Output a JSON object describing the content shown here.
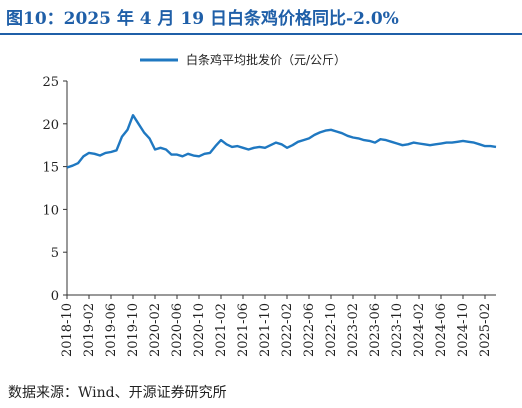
{
  "title": "图10：2025 年 4 月 19 日白条鸡价格同比-2.0%",
  "source": "数据来源：Wind、开源证券研究所",
  "colors": {
    "title": "#1f5fa8",
    "series": "#1f78c1",
    "axis": "#333333"
  },
  "chart_data": {
    "type": "line",
    "title": "",
    "xlabel": "",
    "ylabel": "",
    "legend_position": "top-center",
    "grid": false,
    "ylim": [
      0,
      25
    ],
    "yticks": [
      0,
      5,
      10,
      15,
      20,
      25
    ],
    "xlim": [
      "2018-10",
      "2025-04"
    ],
    "xticks": [
      "2018-10",
      "2019-02",
      "2019-06",
      "2019-10",
      "2020-02",
      "2020-06",
      "2020-10",
      "2021-02",
      "2021-06",
      "2021-10",
      "2022-02",
      "2022-06",
      "2022-10",
      "2023-02",
      "2023-06",
      "2023-10",
      "2024-02",
      "2024-06",
      "2024-10",
      "2025-02"
    ],
    "series": [
      {
        "name": "白条鸡平均批发价（元/公斤）",
        "x": [
          "2018-10",
          "2018-11",
          "2018-12",
          "2019-01",
          "2019-02",
          "2019-03",
          "2019-04",
          "2019-05",
          "2019-06",
          "2019-07",
          "2019-08",
          "2019-09",
          "2019-10",
          "2019-11",
          "2019-12",
          "2020-01",
          "2020-02",
          "2020-03",
          "2020-04",
          "2020-05",
          "2020-06",
          "2020-07",
          "2020-08",
          "2020-09",
          "2020-10",
          "2020-11",
          "2020-12",
          "2021-01",
          "2021-02",
          "2021-03",
          "2021-04",
          "2021-05",
          "2021-06",
          "2021-07",
          "2021-08",
          "2021-09",
          "2021-10",
          "2021-11",
          "2021-12",
          "2022-01",
          "2022-02",
          "2022-03",
          "2022-04",
          "2022-05",
          "2022-06",
          "2022-07",
          "2022-08",
          "2022-09",
          "2022-10",
          "2022-11",
          "2022-12",
          "2023-01",
          "2023-02",
          "2023-03",
          "2023-04",
          "2023-05",
          "2023-06",
          "2023-07",
          "2023-08",
          "2023-09",
          "2023-10",
          "2023-11",
          "2023-12",
          "2024-01",
          "2024-02",
          "2024-03",
          "2024-04",
          "2024-05",
          "2024-06",
          "2024-07",
          "2024-08",
          "2024-09",
          "2024-10",
          "2024-11",
          "2024-12",
          "2025-01",
          "2025-02",
          "2025-03",
          "2025-04"
        ],
        "values": [
          14.9,
          15.1,
          15.4,
          16.2,
          16.6,
          16.5,
          16.3,
          16.6,
          16.7,
          16.9,
          18.5,
          19.3,
          21.0,
          20.0,
          19.0,
          18.3,
          17.0,
          17.2,
          17.0,
          16.4,
          16.4,
          16.2,
          16.5,
          16.3,
          16.2,
          16.5,
          16.6,
          17.4,
          18.1,
          17.6,
          17.3,
          17.4,
          17.2,
          17.0,
          17.2,
          17.3,
          17.2,
          17.5,
          17.8,
          17.6,
          17.2,
          17.5,
          17.9,
          18.1,
          18.3,
          18.7,
          19.0,
          19.2,
          19.3,
          19.1,
          18.9,
          18.6,
          18.4,
          18.3,
          18.1,
          18.0,
          17.8,
          18.2,
          18.1,
          17.9,
          17.7,
          17.5,
          17.6,
          17.8,
          17.7,
          17.6,
          17.5,
          17.6,
          17.7,
          17.8,
          17.8,
          17.9,
          18.0,
          17.9,
          17.8,
          17.6,
          17.4,
          17.4,
          17.3
        ]
      }
    ]
  }
}
